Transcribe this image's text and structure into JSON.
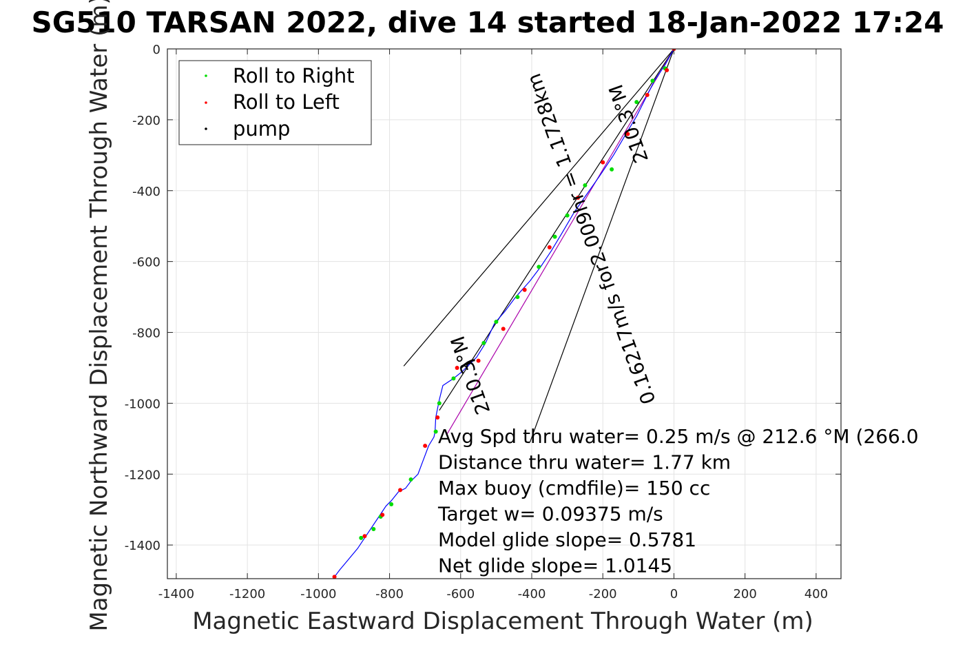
{
  "chart_data": {
    "type": "line",
    "title": "SG510 TARSAN 2022, dive 14 started 18-Jan-2022 17:24",
    "xlabel": "Magnetic Eastward Displacement Through Water (m)",
    "ylabel": "Magnetic Northward Displacement Through Water (m)",
    "xlim": [
      -1425,
      470
    ],
    "ylim": [
      -1495,
      0
    ],
    "xticks": [
      -1400,
      -1200,
      -1000,
      -800,
      -600,
      -400,
      -200,
      0,
      200,
      400
    ],
    "yticks": [
      0,
      -200,
      -400,
      -600,
      -800,
      -1000,
      -1200,
      -1400
    ],
    "grid": true,
    "legend": {
      "position": "top-left",
      "entries": [
        {
          "label": "Roll to Right",
          "color": "#00dd00"
        },
        {
          "label": "Roll to Left",
          "color": "#ff0000"
        },
        {
          "label": "pump",
          "color": "#000000"
        }
      ]
    },
    "series": [
      {
        "name": "track",
        "color": "#0000ff",
        "x": [
          0,
          -25,
          -55,
          -80,
          -105,
          -135,
          -170,
          -210,
          -245,
          -280,
          -315,
          -345,
          -375,
          -405,
          -445,
          -475,
          -505,
          -530,
          -555,
          -575,
          -595,
          -620,
          -650,
          -660,
          -670,
          -672,
          -675,
          -690,
          -705,
          -720,
          -740,
          -755,
          -775,
          -795,
          -810,
          -830,
          -850,
          -870,
          -890,
          -915,
          -940,
          -955
        ],
        "y": [
          0,
          -45,
          -90,
          -140,
          -190,
          -240,
          -300,
          -360,
          -410,
          -460,
          -520,
          -570,
          -615,
          -655,
          -700,
          -740,
          -775,
          -830,
          -870,
          -890,
          -910,
          -930,
          -950,
          -990,
          -1040,
          -1080,
          -1095,
          -1120,
          -1160,
          -1200,
          -1220,
          -1240,
          -1250,
          -1275,
          -1290,
          -1320,
          -1350,
          -1380,
          -1410,
          -1440,
          -1470,
          -1490
        ]
      },
      {
        "name": "Roll to Right",
        "color": "#00dd00",
        "x": [
          -25,
          -60,
          -105,
          -175,
          -250,
          -300,
          -335,
          -380,
          -440,
          -500,
          -535,
          -620,
          -660,
          -670,
          -740,
          -795,
          -825,
          -845,
          -880
        ],
        "y": [
          -55,
          -90,
          -150,
          -340,
          -385,
          -470,
          -530,
          -615,
          -700,
          -770,
          -830,
          -930,
          -1000,
          -1080,
          -1215,
          -1285,
          -1320,
          -1355,
          -1380
        ]
      },
      {
        "name": "Roll to Left",
        "color": "#ff0000",
        "x": [
          0,
          -20,
          -75,
          -130,
          -200,
          -270,
          -350,
          -420,
          -480,
          -550,
          -610,
          -665,
          -700,
          -770,
          -820,
          -870,
          -955
        ],
        "y": [
          0,
          -60,
          -130,
          -240,
          -320,
          -420,
          -560,
          -680,
          -790,
          -880,
          -900,
          -1040,
          -1120,
          -1245,
          -1315,
          -1375,
          -1490
        ]
      },
      {
        "name": "pump",
        "color": "#000000",
        "x": [
          -600,
          -590,
          -580,
          -570,
          -560
        ],
        "y": [
          -900,
          -892,
          -885,
          -880,
          -878
        ]
      }
    ],
    "wedge_lines": [
      {
        "from": [
          0,
          0
        ],
        "to": [
          -760,
          -895
        ]
      },
      {
        "from": [
          0,
          0
        ],
        "to": [
          -405,
          -1110
        ]
      },
      {
        "from": [
          0,
          0
        ],
        "to": [
          -660,
          -1020
        ]
      }
    ],
    "rotated_annotations": [
      {
        "text": "0.16217m/s for2.009hr = 1.1728km",
        "x": -215,
        "y": -530,
        "angle": 250.5
      },
      {
        "text": "210.3°M",
        "x": -110,
        "y": -205,
        "angle": 250.5
      },
      {
        "text": "210.3°M",
        "x": -555,
        "y": -915,
        "angle": 250.5
      }
    ],
    "annotation_lines": [
      "Avg Spd thru water=  0.25 m/s @ 212.6 °M (266.0",
      "Distance thru water=  1.77 km",
      "Max buoy (cmdfile)= 150 cc",
      "Target w= 0.09375 m/s",
      "Model glide slope= 0.5781",
      "Net glide slope= 1.0145"
    ]
  }
}
